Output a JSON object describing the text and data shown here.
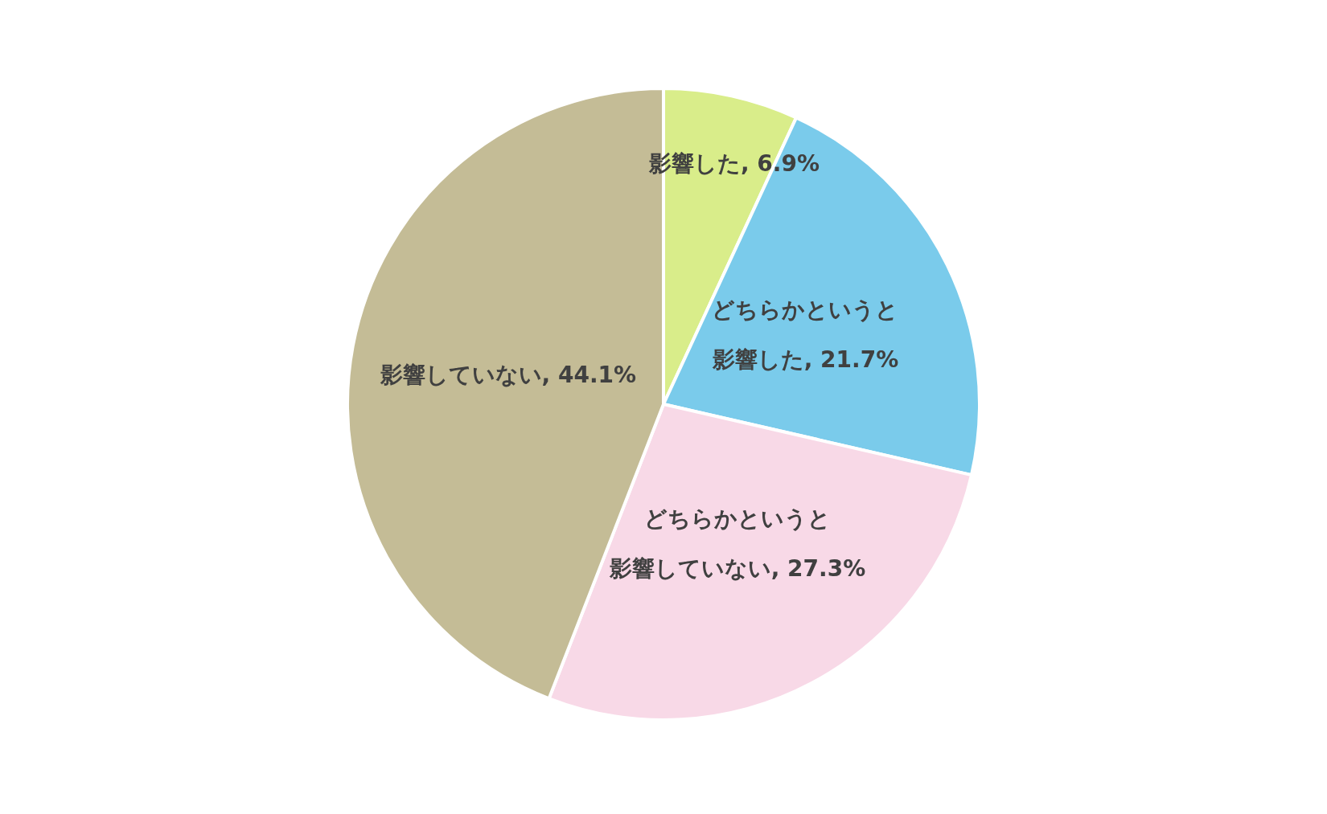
{
  "chart_data": {
    "type": "pie",
    "categories": [
      "影響した",
      "どちらかというと影響した",
      "どちらかというと影響していない",
      "影響していない"
    ],
    "values": [
      6.9,
      21.7,
      27.3,
      44.1
    ],
    "colors": [
      "#d9ed8a",
      "#7acbeb",
      "#f8d9e7",
      "#c4bc96"
    ],
    "value_labels": [
      "6.9%",
      "21.7%",
      "27.3%",
      "44.1%"
    ],
    "legend": false
  }
}
